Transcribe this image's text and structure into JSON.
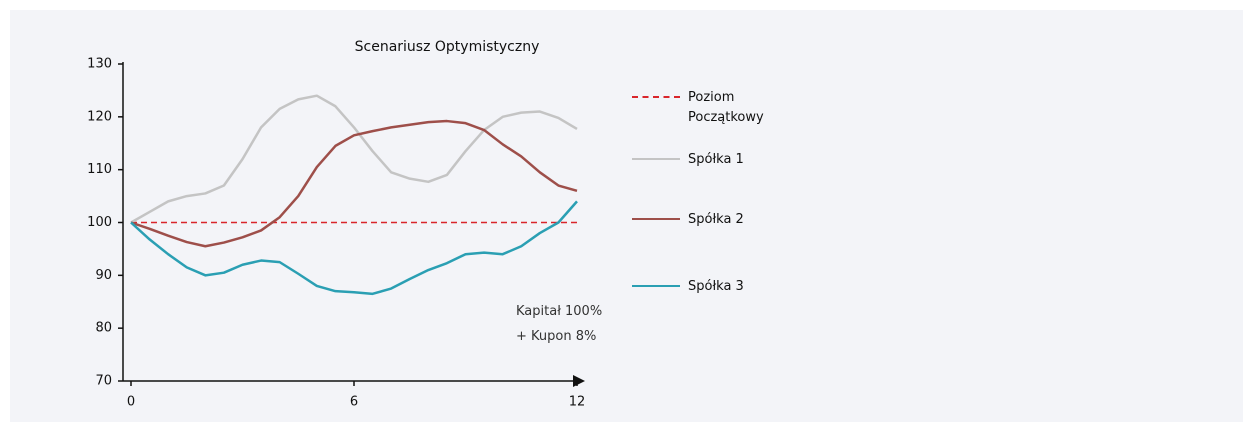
{
  "chart_data": {
    "type": "line",
    "title": "Scenariusz Optymistyczny",
    "x": [
      0,
      0.5,
      1,
      1.5,
      2,
      2.5,
      3,
      3.5,
      4,
      4.5,
      5,
      5.5,
      6,
      6.5,
      7,
      7.5,
      8,
      8.5,
      9,
      9.5,
      10,
      10.5,
      11,
      11.5,
      12
    ],
    "series": [
      {
        "name": "Poziom Początkowy",
        "color": "#d9252b",
        "dashed": true,
        "values": [
          100,
          100,
          100,
          100,
          100,
          100,
          100,
          100,
          100,
          100,
          100,
          100,
          100,
          100,
          100,
          100,
          100,
          100,
          100,
          100,
          100,
          100,
          100,
          100,
          100
        ]
      },
      {
        "name": "Spółka 1",
        "color": "#c4c4c4",
        "values": [
          100,
          102,
          104,
          105,
          105.5,
          107,
          112,
          118,
          121.5,
          123.3,
          124,
          122,
          118,
          113.5,
          109.5,
          108.3,
          107.7,
          109,
          113.5,
          117.5,
          120,
          120.8,
          121,
          119.8,
          117.7
        ]
      },
      {
        "name": "Spółka 2",
        "color": "#9e4f4a",
        "values": [
          100,
          98.8,
          97.5,
          96.3,
          95.5,
          96.2,
          97.2,
          98.5,
          101,
          105,
          110.5,
          114.5,
          116.5,
          117.3,
          118,
          118.5,
          119,
          119.2,
          118.8,
          117.5,
          114.8,
          112.5,
          109.5,
          107,
          106
        ]
      },
      {
        "name": "Spółka 3",
        "color": "#2a9fb3",
        "values": [
          100,
          96.8,
          94,
          91.5,
          90,
          90.5,
          92,
          92.8,
          92.5,
          90.3,
          88,
          87,
          86.8,
          86.5,
          87.5,
          89.3,
          91,
          92.3,
          94,
          94.3,
          94,
          95.5,
          98,
          100,
          104
        ]
      }
    ],
    "xlim": [
      0,
      12
    ],
    "xticks": [
      0,
      6,
      12
    ],
    "ylim": [
      70,
      130
    ],
    "yticks": [
      70,
      80,
      90,
      100,
      110,
      120,
      130
    ],
    "annotation": [
      "Kapitał 100%",
      "+ Kupon 8%"
    ]
  }
}
